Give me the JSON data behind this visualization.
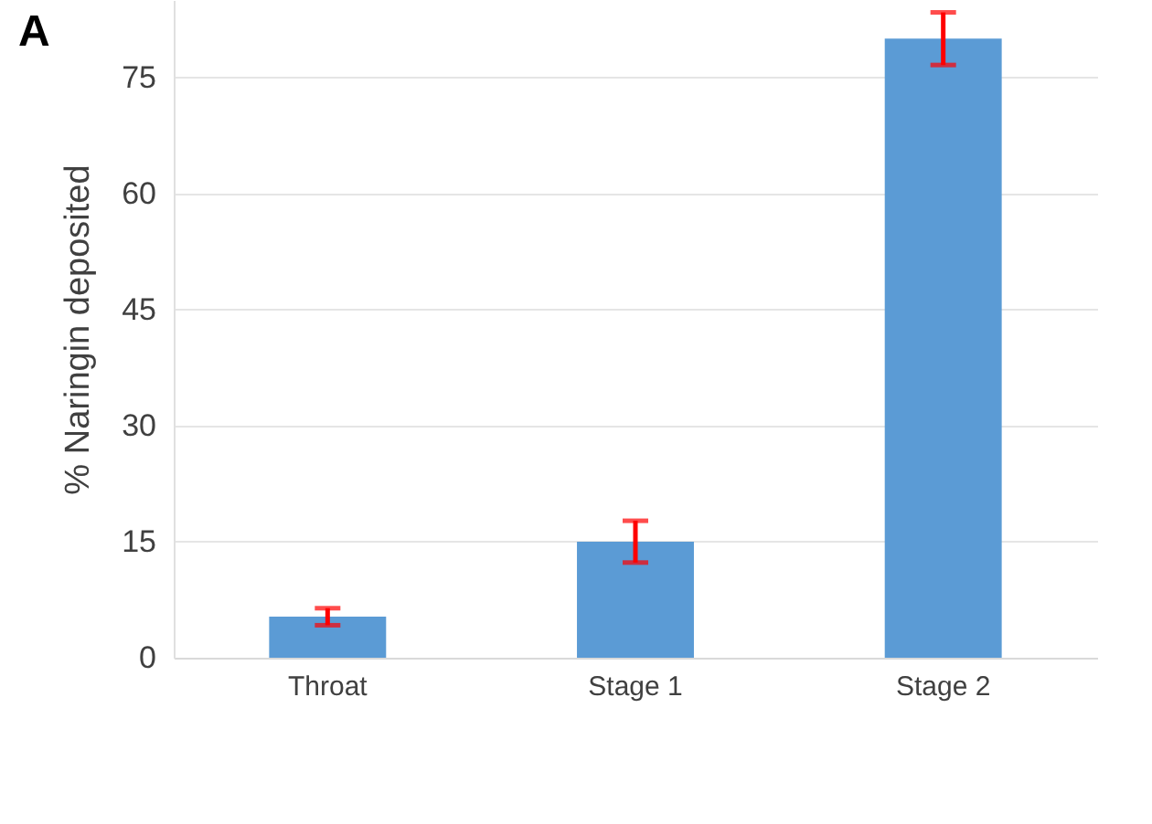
{
  "chart_data": {
    "type": "bar",
    "title": "A",
    "ylabel": "% Naringin deposited",
    "categories": [
      "Throat",
      "Stage 1",
      "Stage 2"
    ],
    "values": [
      5.3,
      15,
      80
    ],
    "errors": [
      1.1,
      2.7,
      3.4
    ],
    "color": "#5b9bd5",
    "ylim": [
      0,
      85
    ],
    "yticks": [
      0,
      15,
      30,
      45,
      60,
      75
    ],
    "grid": "y"
  }
}
